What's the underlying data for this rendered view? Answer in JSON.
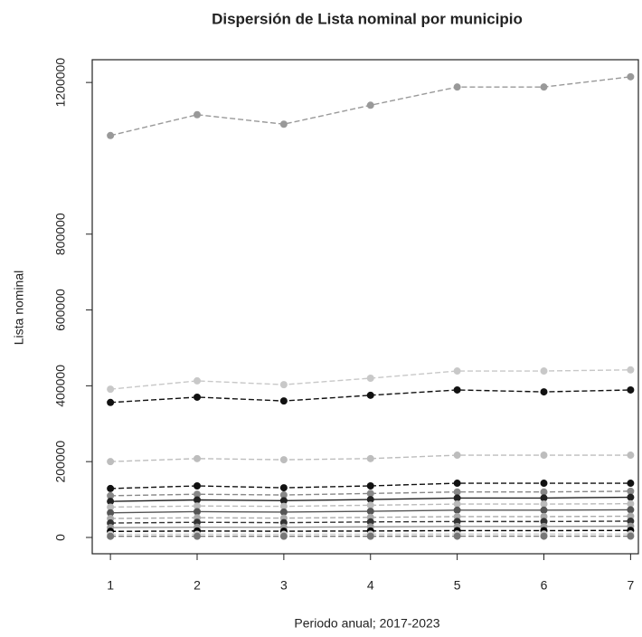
{
  "chart_data": {
    "type": "line",
    "title": "Dispersión de Lista nominal por municipio",
    "xlabel": "Periodo anual; 2017-2023",
    "ylabel": "Lista nominal",
    "x": [
      1,
      2,
      3,
      4,
      5,
      6,
      7
    ],
    "xlim": [
      0.79,
      7.09
    ],
    "xticks": [
      1,
      2,
      3,
      4,
      5,
      6,
      7
    ],
    "ylim": [
      -43000,
      1260000
    ],
    "yticks": [
      0,
      200000,
      400000,
      600000,
      800000,
      1200000
    ],
    "series": [
      {
        "color": "#999999",
        "linestyle": "dashed",
        "values": [
          1060000,
          1115000,
          1090000,
          1140000,
          1188000,
          1188000,
          1215000
        ]
      },
      {
        "color": "#c8c8c8",
        "linestyle": "dashed",
        "values": [
          391000,
          413000,
          403000,
          420000,
          439000,
          439000,
          442000
        ]
      },
      {
        "color": "#111111",
        "linestyle": "dashed",
        "values": [
          356000,
          370000,
          360000,
          375000,
          389000,
          384000,
          389000
        ]
      },
      {
        "color": "#bdbdbd",
        "linestyle": "dashed",
        "values": [
          200000,
          208000,
          205000,
          208000,
          217000,
          217000,
          217000
        ]
      },
      {
        "color": "#111111",
        "linestyle": "dashed",
        "values": [
          129000,
          136000,
          131000,
          136000,
          143000,
          143000,
          143000
        ]
      },
      {
        "color": "#888888",
        "linestyle": "dashed",
        "values": [
          110000,
          114000,
          112000,
          116000,
          120000,
          120000,
          122000
        ]
      },
      {
        "color": "#222222",
        "linestyle": "solid",
        "values": [
          95000,
          99000,
          97000,
          100000,
          104000,
          104000,
          106000
        ]
      },
      {
        "color": "#bbbbbb",
        "linestyle": "dashed",
        "values": [
          80000,
          83000,
          82000,
          85000,
          88000,
          88000,
          89000
        ]
      },
      {
        "color": "#555555",
        "linestyle": "solid",
        "values": [
          65000,
          68000,
          67000,
          69000,
          72000,
          72000,
          73000
        ]
      },
      {
        "color": "#aaaaaa",
        "linestyle": "dashed",
        "values": [
          50000,
          52000,
          51000,
          53000,
          55000,
          55000,
          56000
        ]
      },
      {
        "color": "#333333",
        "linestyle": "dashed",
        "values": [
          38000,
          40000,
          39000,
          41000,
          42000,
          42000,
          43000
        ]
      },
      {
        "color": "#999999",
        "linestyle": "solid",
        "values": [
          26000,
          27000,
          27000,
          28000,
          29000,
          29000,
          29500
        ]
      },
      {
        "color": "#000000",
        "linestyle": "dashed",
        "values": [
          16000,
          17000,
          16500,
          17000,
          18000,
          18000,
          18500
        ]
      },
      {
        "color": "#cccccc",
        "linestyle": "dashed",
        "values": [
          8000,
          8400,
          8200,
          8600,
          9000,
          9000,
          9100
        ]
      },
      {
        "color": "#777777",
        "linestyle": "dashed",
        "values": [
          3000,
          3100,
          3100,
          3200,
          3300,
          3300,
          3400
        ]
      }
    ]
  }
}
